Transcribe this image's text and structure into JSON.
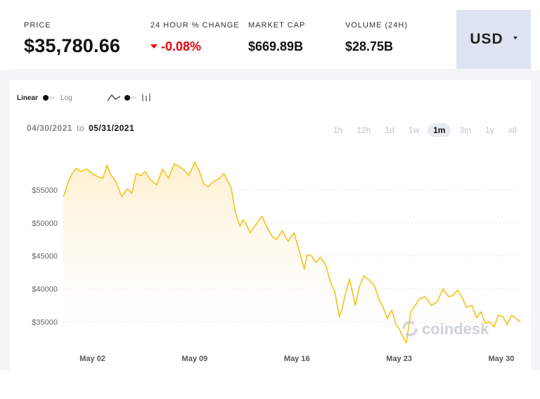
{
  "stats": {
    "price_label": "PRICE",
    "price_value": "$35,780.66",
    "change_label": "24 HOUR % CHANGE",
    "change_value": "-0.08%",
    "marketcap_label": "MARKET CAP",
    "marketcap_value": "$669.89B",
    "volume_label": "VOLUME (24H)",
    "volume_value": "$28.75B"
  },
  "currency": {
    "selected": "USD"
  },
  "scale_toggle": {
    "linear_label": "Linear",
    "log_label": "Log",
    "selected": "Linear"
  },
  "chart_type_toggle": {
    "line_icon": "line-chart-icon",
    "candle_icon": "candlestick-icon",
    "selected": "line"
  },
  "date_range": {
    "from": "04/30/2021",
    "to_word": "to",
    "to": "05/31/2021"
  },
  "range_tabs": [
    {
      "label": "1h",
      "active": false
    },
    {
      "label": "12h",
      "active": false
    },
    {
      "label": "1d",
      "active": false
    },
    {
      "label": "1w",
      "active": false
    },
    {
      "label": "1m",
      "active": true
    },
    {
      "label": "3m",
      "active": false
    },
    {
      "label": "1y",
      "active": false
    },
    {
      "label": "all",
      "active": false
    }
  ],
  "watermark": {
    "text": "coindesk",
    "icon": "coindesk-logo-icon"
  },
  "colors": {
    "line": "#f5c21b",
    "fill_top": "#fdf0cf",
    "negative": "#e8000b",
    "currency_bg": "#dde3f0"
  },
  "chart_data": {
    "type": "area",
    "x_unit": "days since Apr 30, 2021",
    "ylim": [
      31500,
      59500
    ],
    "xlim": [
      0,
      31.3
    ],
    "yticks": [
      {
        "value": 35000,
        "label": "$35000"
      },
      {
        "value": 40000,
        "label": "$40000"
      },
      {
        "value": 45000,
        "label": "$45000"
      },
      {
        "value": 50000,
        "label": "$50000"
      },
      {
        "value": 55000,
        "label": "$55000"
      }
    ],
    "xticks": [
      {
        "value": 2,
        "label": "May 02"
      },
      {
        "value": 9,
        "label": "May 09"
      },
      {
        "value": 16,
        "label": "May 16"
      },
      {
        "value": 23,
        "label": "May 23"
      },
      {
        "value": 30,
        "label": "May 30"
      }
    ],
    "grid": true,
    "legend": "none",
    "series": [
      {
        "x": [
          0,
          0.1,
          0.3,
          0.6,
          0.9,
          1.2,
          1.6,
          2.0,
          2.4,
          2.7,
          3.0,
          3.2,
          3.6,
          4.0,
          4.4,
          4.7,
          5.0,
          5.3,
          5.6,
          6.0,
          6.4,
          6.8,
          7.2,
          7.6,
          8.0,
          8.3,
          8.6,
          9.0,
          9.3,
          9.6,
          9.9,
          10.3,
          10.7,
          11.0,
          11.3,
          11.5,
          11.8,
          12.1,
          12.3,
          12.5,
          12.8,
          13.2,
          13.6,
          14.0,
          14.3,
          14.6,
          15.0,
          15.4,
          15.8,
          16.2,
          16.5,
          16.7,
          17.0,
          17.3,
          17.6,
          18.0,
          18.3,
          18.6,
          18.9,
          19.1,
          19.3,
          19.6,
          20.0,
          20.3,
          20.6,
          21.0,
          21.3,
          21.6,
          21.9,
          22.2,
          22.5,
          22.8,
          23.0,
          23.2,
          23.5,
          23.8,
          24.1,
          24.4,
          24.8,
          25.2,
          25.6,
          26.0,
          26.4,
          26.7,
          27.0,
          27.3,
          27.6,
          28.0,
          28.3,
          28.6,
          28.9,
          29.2,
          29.5,
          29.8,
          30.1,
          30.4,
          30.7,
          31.0,
          31.3
        ],
        "y": [
          54000,
          54500,
          56000,
          57500,
          58300,
          57800,
          58200,
          57500,
          57000,
          56800,
          58800,
          57500,
          56300,
          54000,
          55200,
          54500,
          57500,
          57200,
          57800,
          56500,
          55800,
          58200,
          56800,
          59000,
          58500,
          58000,
          57200,
          59200,
          58000,
          56000,
          55500,
          56300,
          56800,
          57500,
          56200,
          55300,
          51500,
          49500,
          50500,
          50000,
          48500,
          49800,
          51000,
          49200,
          48000,
          47500,
          48800,
          47200,
          48500,
          45500,
          43000,
          45200,
          45000,
          44000,
          44800,
          43500,
          41000,
          39500,
          35800,
          37000,
          39000,
          41500,
          37500,
          40500,
          42000,
          41200,
          40500,
          38500,
          37200,
          35500,
          36800,
          34500,
          34000,
          33000,
          31800,
          36500,
          37500,
          38500,
          38800,
          37500,
          38000,
          40000,
          38800,
          39000,
          39800,
          38800,
          37200,
          37500,
          35600,
          36500,
          34800,
          35000,
          34200,
          36000,
          35800,
          34500,
          36000,
          35500,
          35000
        ]
      }
    ]
  }
}
